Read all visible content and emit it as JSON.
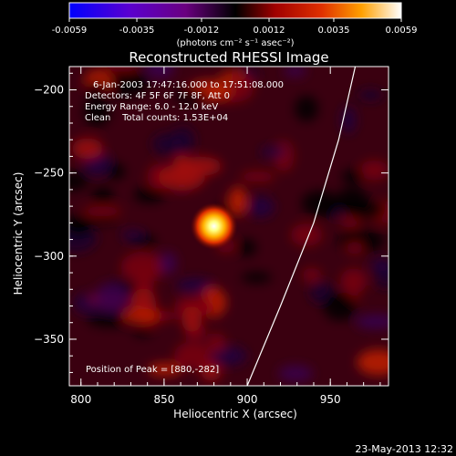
{
  "chart_data": {
    "type": "heatmap",
    "title": "Reconstructed RHESSI Image",
    "xlabel": "Heliocentric X (arcsec)",
    "ylabel": "Heliocentric Y (arcsec)",
    "x_ticks": [
      "800",
      "850",
      "900",
      "950"
    ],
    "y_ticks": [
      "-200",
      "-250",
      "-300",
      "-350"
    ],
    "x_range": [
      793,
      985
    ],
    "y_range": [
      -378,
      -186
    ],
    "colorbar": {
      "ticks": [
        "-0.0059",
        "-0.0035",
        "-0.0012",
        "0.0012",
        "0.0035",
        "0.0059"
      ],
      "range": [
        -0.0059,
        0.0059
      ],
      "unit_label": "(photons cm⁻² s⁻¹ asec⁻²)"
    },
    "annotations": {
      "time_range": "6-Jan-2003 17:47:16.000 to 17:51:08.000",
      "detectors": "Detectors: 4F 5F 6F 7F 8F, Att 0",
      "energy": "Energy Range: 6.0 - 12.0 keV",
      "clean": "Clean    Total counts: 1.53E+04",
      "peak": "Position of Peak = [880,-282]"
    },
    "peak": {
      "x": 880,
      "y": -282,
      "value": 0.0059
    },
    "limb_curve": [
      [
        900,
        -378
      ],
      [
        920,
        -330
      ],
      [
        940,
        -280
      ],
      [
        955,
        -230
      ],
      [
        965,
        -186
      ]
    ],
    "grid": false,
    "colormap": "rainbow-blue-to-white"
  },
  "footer": {
    "timestamp": "23-May-2013 12:32"
  },
  "colors": {
    "background": "#000000",
    "foreground": "#ffffff",
    "limb": "#ffffff"
  }
}
